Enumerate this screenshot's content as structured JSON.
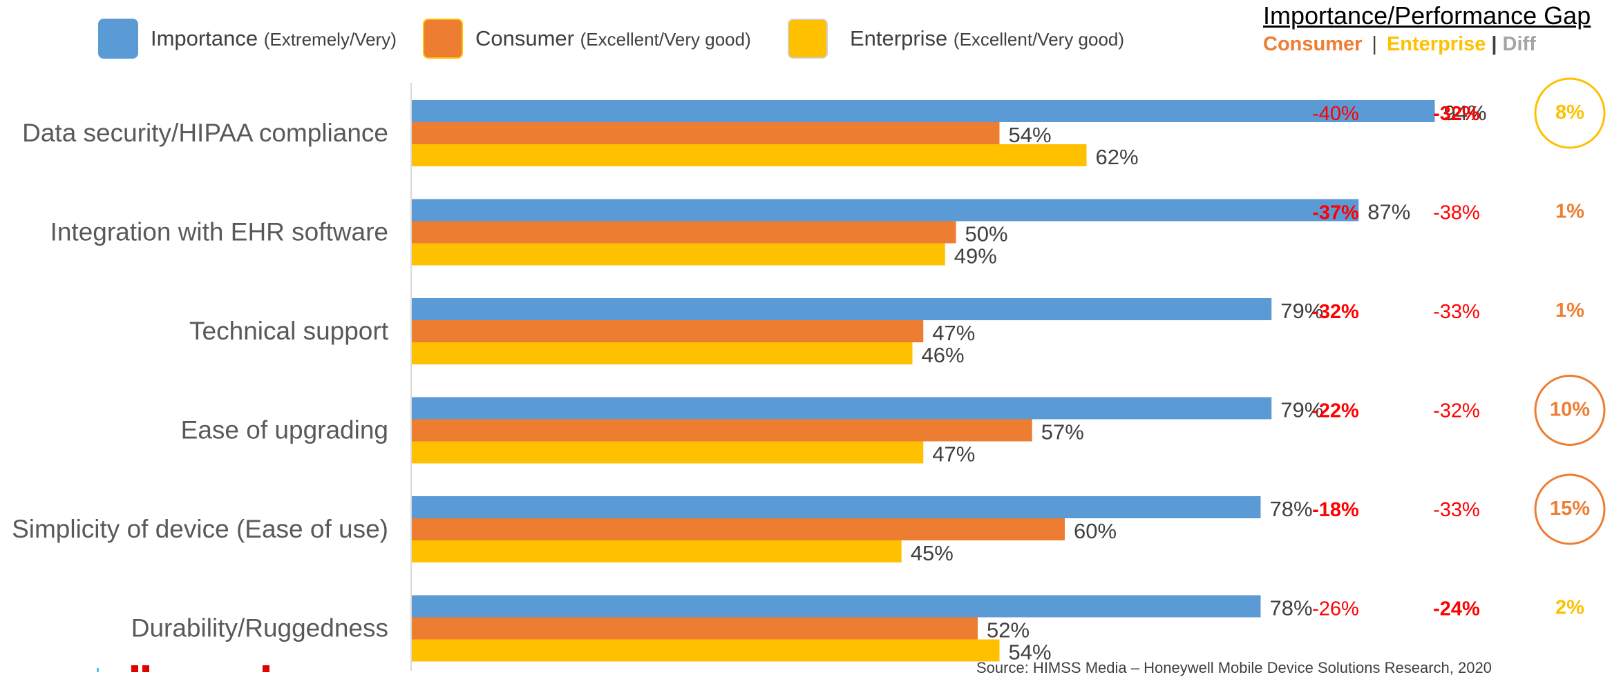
{
  "legend": {
    "importance": {
      "label": "Importance",
      "note": "(Extremely/Very)"
    },
    "consumer": {
      "label": "Consumer",
      "note": "(Excellent/Very good)"
    },
    "enterprise": {
      "label": "Enterprise",
      "note": "(Excellent/Very good)"
    }
  },
  "gap_panel": {
    "title": "Importance/Performance Gap",
    "consumer_header": "Consumer",
    "separator": "|",
    "enterprise_header": "Enterprise",
    "separator2": "|",
    "diff_header": "Diff"
  },
  "source": "Source: HIMSS Media – Honeywell Mobile Device Solutions  Research, 2020",
  "colors": {
    "importance": "#5b9bd5",
    "consumer": "#ed7d31",
    "enterprise": "#ffc000",
    "gap_red": "#ff0000",
    "diff_orange": "#ed7d31",
    "diff_gold": "#ffc000",
    "axis": "#d9d9d9",
    "label_gray": "#595959"
  },
  "chart_data": {
    "type": "bar",
    "orientation": "horizontal",
    "categories": [
      "Data security/HIPAA compliance",
      "Integration with EHR software",
      "Technical support",
      "Ease of upgrading",
      "Simplicity of device (Ease of use)",
      "Durability/Ruggedness"
    ],
    "series": [
      {
        "name": "Importance",
        "values": [
          94,
          87,
          79,
          79,
          78,
          78
        ],
        "labels": [
          "94%",
          "87%",
          "79%",
          "79%",
          "78%",
          "78%"
        ]
      },
      {
        "name": "Consumer",
        "values": [
          54,
          50,
          47,
          57,
          60,
          52
        ],
        "labels": [
          "54%",
          "50%",
          "47%",
          "57%",
          "60%",
          "52%"
        ]
      },
      {
        "name": "Enterprise",
        "values": [
          62,
          49,
          46,
          47,
          45,
          54
        ],
        "labels": [
          "62%",
          "49%",
          "46%",
          "47%",
          "45%",
          "54%"
        ]
      }
    ],
    "xlim": [
      0,
      100
    ],
    "unit": "%",
    "gaps": [
      {
        "consumer": "-40%",
        "enterprise": "-32%",
        "diff": "8%",
        "bold": "enterprise",
        "diff_color": "gold",
        "circled": true
      },
      {
        "consumer": "-37%",
        "enterprise": "-38%",
        "diff": "1%",
        "bold": "consumer",
        "diff_color": "orange",
        "circled": false
      },
      {
        "consumer": "-32%",
        "enterprise": "-33%",
        "diff": "1%",
        "bold": "consumer",
        "diff_color": "orange",
        "circled": false
      },
      {
        "consumer": "-22%",
        "enterprise": "-32%",
        "diff": "10%",
        "bold": "consumer",
        "diff_color": "orange",
        "circled": true
      },
      {
        "consumer": "-18%",
        "enterprise": "-33%",
        "diff": "15%",
        "bold": "consumer",
        "diff_color": "orange",
        "circled": true
      },
      {
        "consumer": "-26%",
        "enterprise": "-24%",
        "diff": "2%",
        "bold": "enterprise",
        "diff_color": "gold",
        "circled": false
      }
    ]
  }
}
